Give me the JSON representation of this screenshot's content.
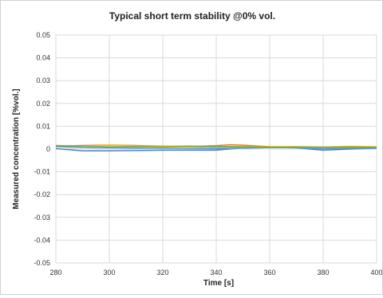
{
  "chart_data": {
    "type": "line",
    "title": "Typical short term stability @0% vol.",
    "xlabel": "Time [s]",
    "ylabel": "Measured concentration [%vol.]",
    "xlim": [
      280,
      400
    ],
    "ylim": [
      -0.05,
      0.05
    ],
    "x_ticks": [
      "280",
      "300",
      "320",
      "340",
      "360",
      "380",
      "400"
    ],
    "y_ticks": [
      "0.05",
      "0.04",
      "0.03",
      "0.02",
      "0.01",
      "0",
      "-0.01",
      "-0.02",
      "-0.03",
      "-0.04",
      "-0.05"
    ],
    "grid": true,
    "legend": "none",
    "series": [
      {
        "color": "#4472C4",
        "x": [
          280,
          290,
          300,
          320,
          340,
          350,
          360,
          370,
          380,
          390,
          400
        ],
        "values": [
          0.0002,
          -0.0008,
          -0.0008,
          -0.0005,
          -0.0005,
          0.0005,
          0.0008,
          0.0005,
          -0.0005,
          0.0,
          0.0003
        ]
      },
      {
        "color": "#ED7D31",
        "x": [
          280,
          290,
          300,
          310,
          320,
          330,
          340,
          345,
          350,
          360,
          370,
          380,
          390,
          400
        ],
        "values": [
          0.0013,
          0.0016,
          0.0018,
          0.0016,
          0.0013,
          0.0012,
          0.0015,
          0.0019,
          0.0017,
          0.0011,
          0.0009,
          0.0006,
          0.0007,
          0.0008
        ]
      },
      {
        "color": "#A5A5A5",
        "x": [
          280,
          290,
          300,
          310,
          320,
          330,
          340,
          350,
          360,
          370,
          380,
          390,
          400
        ],
        "values": [
          0.0012,
          0.0013,
          0.0009,
          0.0008,
          0.0011,
          0.0009,
          0.0006,
          0.0008,
          0.0009,
          0.0007,
          0.0005,
          0.0006,
          0.0007
        ]
      },
      {
        "color": "#FFC000",
        "x": [
          280,
          290,
          300,
          310,
          320,
          330,
          340,
          350,
          360,
          370,
          380,
          390,
          400
        ],
        "values": [
          0.0016,
          0.0013,
          0.0017,
          0.0014,
          0.0012,
          0.0014,
          0.0011,
          0.0012,
          0.001,
          0.0011,
          0.0009,
          0.0012,
          0.001
        ]
      },
      {
        "color": "#5B9BD5",
        "x": [
          280,
          290,
          300,
          310,
          320,
          330,
          340,
          350,
          360,
          370,
          380,
          390,
          400
        ],
        "values": [
          0.001,
          0.0006,
          0.0005,
          0.0003,
          0.0004,
          0.0002,
          0.0001,
          0.0003,
          0.0006,
          0.0005,
          0.0001,
          0.0003,
          0.0004
        ]
      },
      {
        "color": "#70AD47",
        "x": [
          280,
          290,
          300,
          310,
          320,
          330,
          340,
          350,
          360,
          370,
          380,
          390,
          400
        ],
        "values": [
          0.0014,
          0.0012,
          0.001,
          0.0011,
          0.0009,
          0.001,
          0.0012,
          0.001,
          0.0008,
          0.0009,
          0.0008,
          0.0009,
          0.0008
        ]
      }
    ]
  }
}
